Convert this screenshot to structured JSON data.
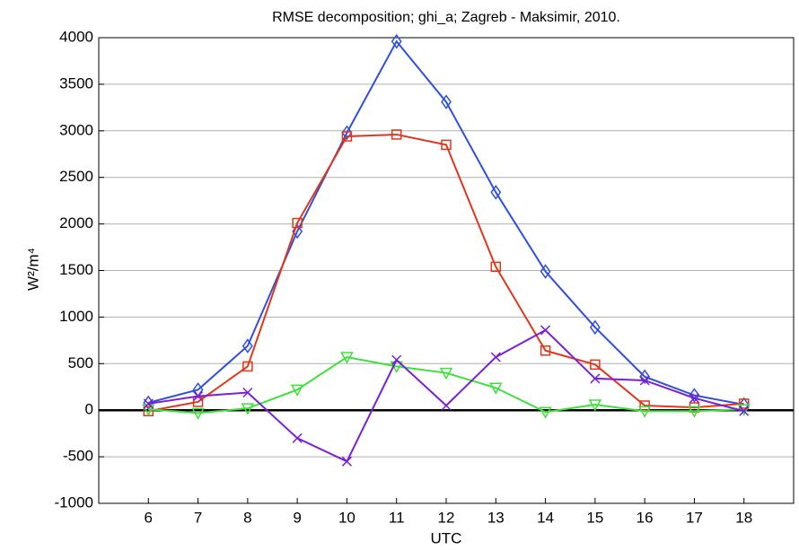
{
  "chart_data": {
    "type": "line",
    "title": "RMSE decomposition; ghi_a; Zagreb - Maksimir, 2010.",
    "xlabel": "UTC",
    "ylabel": "W²/m⁴",
    "x": [
      6,
      7,
      8,
      9,
      10,
      11,
      12,
      13,
      14,
      15,
      16,
      17,
      18
    ],
    "xlim": [
      5,
      19
    ],
    "xticks": [
      6,
      7,
      8,
      9,
      10,
      11,
      12,
      13,
      14,
      15,
      16,
      17,
      18
    ],
    "ylim": [
      -1000,
      4000
    ],
    "yticks": [
      -1000,
      -500,
      0,
      500,
      1000,
      1500,
      2000,
      2500,
      3000,
      3500,
      4000
    ],
    "grid": true,
    "series": [
      {
        "color": "#2f4fe0",
        "marker": "diamond",
        "values": [
          80,
          220,
          690,
          1920,
          2980,
          3960,
          3310,
          2340,
          1490,
          890,
          360,
          160,
          60
        ]
      },
      {
        "color": "#e0361a",
        "marker": "square",
        "values": [
          -10,
          90,
          470,
          2010,
          2940,
          2960,
          2850,
          1540,
          640,
          490,
          50,
          30,
          70
        ]
      },
      {
        "color": "#3ee03a",
        "marker": "triangle-down",
        "values": [
          10,
          -30,
          20,
          220,
          570,
          470,
          400,
          240,
          -20,
          60,
          -10,
          -10,
          10
        ]
      },
      {
        "color": "#7a1fd6",
        "marker": "x",
        "values": [
          70,
          150,
          190,
          -300,
          -550,
          540,
          50,
          570,
          860,
          340,
          320,
          130,
          -10
        ]
      }
    ]
  }
}
